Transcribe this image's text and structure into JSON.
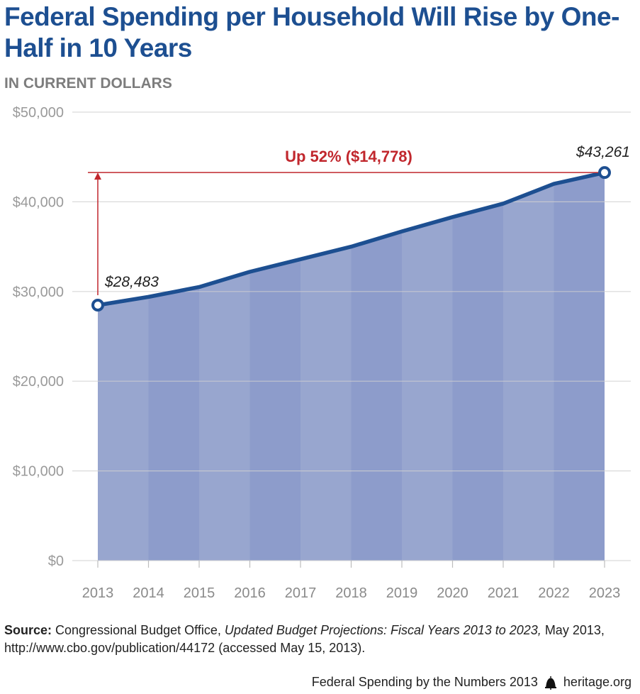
{
  "title": "Federal Spending per Household Will Rise by One-Half in 10 Years",
  "subtitle": "IN CURRENT DOLLARS",
  "chart_data": {
    "type": "area",
    "x": [
      "2013",
      "2014",
      "2015",
      "2016",
      "2017",
      "2018",
      "2019",
      "2020",
      "2021",
      "2022",
      "2023"
    ],
    "values": [
      28483,
      29400,
      30500,
      32200,
      33600,
      35000,
      36700,
      38300,
      39800,
      42000,
      43261
    ],
    "ylim": [
      0,
      50000
    ],
    "yticks": [
      "$0",
      "$10,000",
      "$20,000",
      "$30,000",
      "$40,000",
      "$50,000"
    ],
    "ytick_values": [
      0,
      10000,
      20000,
      30000,
      40000,
      50000
    ],
    "grid": true,
    "start_label": "$28,483",
    "end_label": "$43,261",
    "annotation": "Up 52% ($14,778)",
    "colors": {
      "area_light": "#98a6cf",
      "area_dark": "#8d9ccb",
      "line": "#1d4f91",
      "annotation": "#c1272d",
      "grid": "#cfcfcf",
      "tick_text": "#9a9a9a"
    }
  },
  "source": {
    "label": "Source:",
    "text1": " Congressional Budget Office, ",
    "italic": "Updated Budget Projections: Fiscal Years 2013 to 2023,",
    "text2": " May 2013, http://www.cbo.gov/publication/44172 (accessed May 15, 2013)."
  },
  "footer": {
    "publication": "Federal Spending by the Numbers 2013",
    "site": "heritage.org",
    "icon": "liberty-bell-icon"
  }
}
